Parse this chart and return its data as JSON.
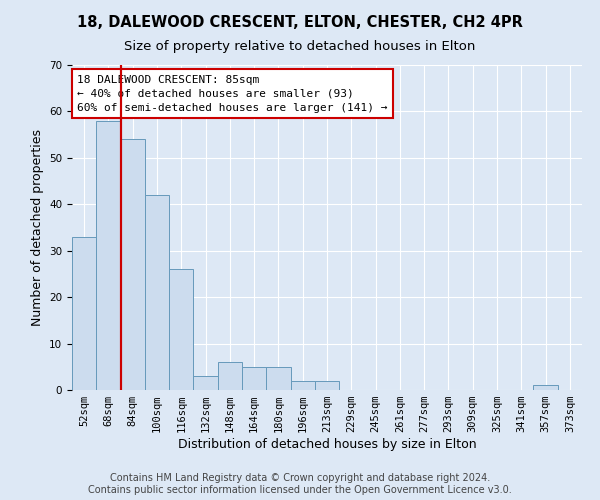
{
  "title_line1": "18, DALEWOOD CRESCENT, ELTON, CHESTER, CH2 4PR",
  "title_line2": "Size of property relative to detached houses in Elton",
  "xlabel": "Distribution of detached houses by size in Elton",
  "ylabel": "Number of detached properties",
  "footnote1": "Contains HM Land Registry data © Crown copyright and database right 2024.",
  "footnote2": "Contains public sector information licensed under the Open Government Licence v3.0.",
  "categories": [
    "52sqm",
    "68sqm",
    "84sqm",
    "100sqm",
    "116sqm",
    "132sqm",
    "148sqm",
    "164sqm",
    "180sqm",
    "196sqm",
    "213sqm",
    "229sqm",
    "245sqm",
    "261sqm",
    "277sqm",
    "293sqm",
    "309sqm",
    "325sqm",
    "341sqm",
    "357sqm",
    "373sqm"
  ],
  "values": [
    33,
    58,
    54,
    42,
    26,
    3,
    6,
    5,
    5,
    2,
    2,
    0,
    0,
    0,
    0,
    0,
    0,
    0,
    0,
    1,
    0
  ],
  "bar_color": "#ccdcee",
  "bar_edge_color": "#6699bb",
  "property_line_index": 1.5,
  "property_line_color": "#cc0000",
  "annotation_text": "18 DALEWOOD CRESCENT: 85sqm\n← 40% of detached houses are smaller (93)\n60% of semi-detached houses are larger (141) →",
  "annotation_box_color": "white",
  "annotation_box_edge_color": "#cc0000",
  "ylim": [
    0,
    70
  ],
  "yticks": [
    0,
    10,
    20,
    30,
    40,
    50,
    60,
    70
  ],
  "background_color": "#dde8f5",
  "plot_bg_color": "#dde8f5",
  "grid_color": "#ffffff",
  "title_fontsize": 10.5,
  "subtitle_fontsize": 9.5,
  "axis_label_fontsize": 9,
  "tick_fontsize": 7.5,
  "annotation_fontsize": 8,
  "footnote_fontsize": 7
}
